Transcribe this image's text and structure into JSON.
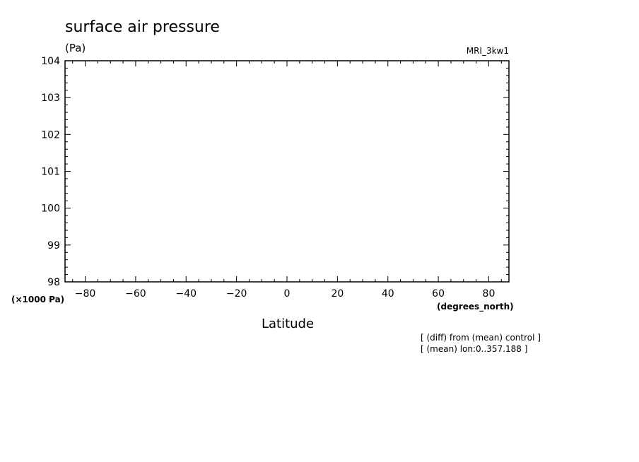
{
  "chart_data": {
    "type": "line",
    "title": "surface air pressure",
    "units": "(Pa)",
    "model": "MRI_3kw1",
    "xlabel": "Latitude",
    "xunits": "(degrees_north)",
    "yunits": "(×1000 Pa)",
    "xlim": [
      -88,
      88
    ],
    "ylim": [
      98,
      104
    ],
    "xticks": [
      -80,
      -60,
      -40,
      -20,
      0,
      20,
      40,
      60,
      80
    ],
    "yticks": [
      98,
      99,
      100,
      101,
      102,
      103,
      104
    ],
    "series": [],
    "grid": false,
    "notes": [
      "[ (diff) from (mean) control ]",
      "[ (mean) lon:0..357.188 ]"
    ]
  }
}
